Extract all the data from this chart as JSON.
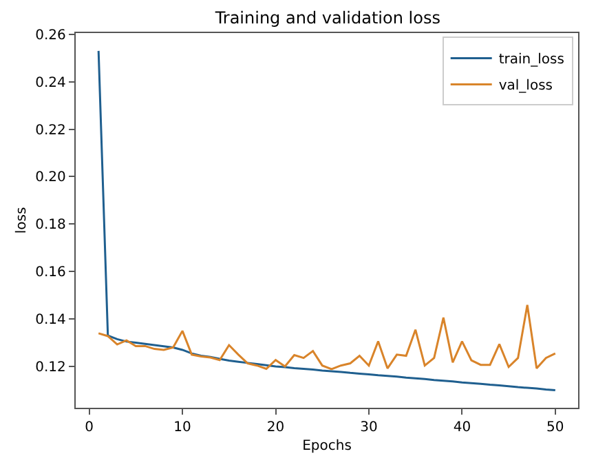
{
  "chart_data": {
    "type": "line",
    "title": "Training and validation loss",
    "xlabel": "Epochs",
    "ylabel": "loss",
    "x": [
      1,
      2,
      3,
      4,
      5,
      6,
      7,
      8,
      9,
      10,
      11,
      12,
      13,
      14,
      15,
      16,
      17,
      18,
      19,
      20,
      21,
      22,
      23,
      24,
      25,
      26,
      27,
      28,
      29,
      30,
      31,
      32,
      33,
      34,
      35,
      36,
      37,
      38,
      39,
      40,
      41,
      42,
      43,
      44,
      45,
      46,
      47,
      48,
      49,
      50
    ],
    "series": [
      {
        "name": "train_loss",
        "color": "#1f5f8f",
        "values": [
          0.253,
          0.133,
          0.1315,
          0.1305,
          0.13,
          0.1295,
          0.129,
          0.1285,
          0.128,
          0.127,
          0.1255,
          0.1245,
          0.124,
          0.1232,
          0.1225,
          0.122,
          0.1215,
          0.121,
          0.1205,
          0.12,
          0.1197,
          0.1193,
          0.119,
          0.1187,
          0.1183,
          0.118,
          0.1177,
          0.1173,
          0.117,
          0.1167,
          0.1163,
          0.116,
          0.1157,
          0.1153,
          0.115,
          0.1147,
          0.1143,
          0.114,
          0.1137,
          0.1133,
          0.113,
          0.1127,
          0.1123,
          0.112,
          0.1117,
          0.1113,
          0.111,
          0.1107,
          0.1103,
          0.11
        ]
      },
      {
        "name": "val_loss",
        "color": "#d9842a",
        "values": [
          0.134,
          0.1328,
          0.1293,
          0.131,
          0.1286,
          0.1286,
          0.1274,
          0.127,
          0.128,
          0.135,
          0.125,
          0.1242,
          0.1238,
          0.1227,
          0.129,
          0.125,
          0.1213,
          0.1204,
          0.119,
          0.1227,
          0.12,
          0.1248,
          0.1236,
          0.1265,
          0.1204,
          0.1189,
          0.1204,
          0.1213,
          0.1245,
          0.1204,
          0.1306,
          0.1192,
          0.125,
          0.1245,
          0.1355,
          0.1204,
          0.1236,
          0.1406,
          0.1217,
          0.1306,
          0.1226,
          0.1207,
          0.1207,
          0.1294,
          0.1198,
          0.1236,
          0.1459,
          0.1192,
          0.1236,
          0.1255
        ]
      }
    ],
    "xlim": [
      -1.45,
      52.45
    ],
    "xticks": [
      0,
      10,
      20,
      30,
      40,
      50
    ],
    "ylim": [
      0.1026,
      0.2605
    ],
    "yticks": [
      {
        "value": 0.12,
        "label": "0.12"
      },
      {
        "value": 0.14,
        "label": "0.14"
      },
      {
        "value": 0.16,
        "label": "0.16"
      },
      {
        "value": 0.18,
        "label": "0.18"
      },
      {
        "value": 0.2,
        "label": "0.20"
      },
      {
        "value": 0.22,
        "label": "0.22"
      },
      {
        "value": 0.24,
        "label": "0.24"
      },
      {
        "value": 0.26,
        "label": "0.26"
      }
    ],
    "legend": "top right",
    "marker": "none",
    "line_style": "solid"
  }
}
